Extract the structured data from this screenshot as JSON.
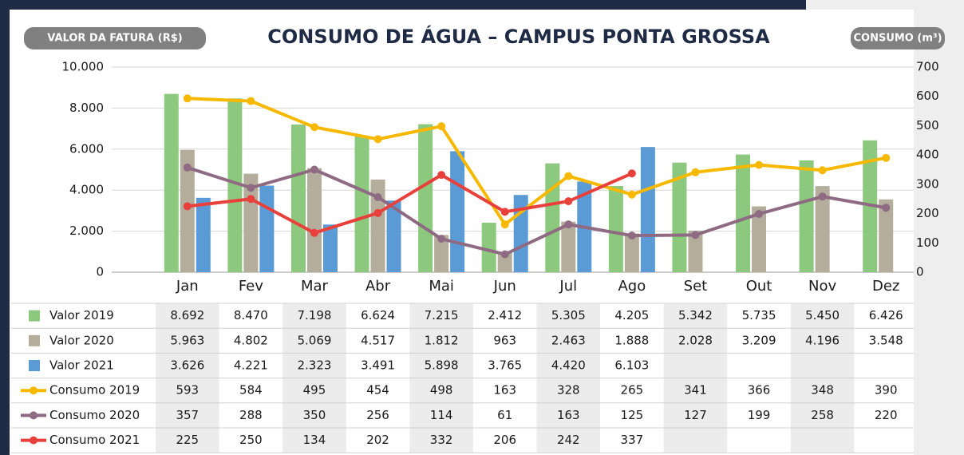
{
  "chart_data": {
    "type": "bar",
    "title": "CONSUMO DE ÁGUA – CAMPUS PONTA GROSSA",
    "y_label": "VALOR DA FATURA (R$)",
    "y2_label": "CONSUMO (m³)",
    "categories": [
      "Jan",
      "Fev",
      "Mar",
      "Abr",
      "Mai",
      "Jun",
      "Jul",
      "Ago",
      "Set",
      "Out",
      "Nov",
      "Dez"
    ],
    "ylim": [
      0,
      10000
    ],
    "yticks": [
      0,
      {
        "value": 2000,
        "label": "2.000"
      },
      {
        "value": 4000,
        "label": "4.000"
      },
      {
        "value": 6000,
        "label": "6.000"
      },
      {
        "value": 8000,
        "label": "8.000"
      },
      {
        "value": 10000,
        "label": "10.000"
      }
    ],
    "y2lim": [
      0,
      700
    ],
    "y2ticks": [
      0,
      100,
      200,
      300,
      400,
      500,
      600,
      700
    ],
    "grid": true,
    "series": [
      {
        "name": "Valor 2019",
        "type": "bar",
        "color": "#8cc97e",
        "values": [
          8692,
          8470,
          7198,
          6624,
          7215,
          2412,
          5305,
          4205,
          5342,
          5735,
          5450,
          6426
        ],
        "value_labels": [
          "8.692",
          "8.470",
          "7.198",
          "6.624",
          "7.215",
          "2.412",
          "5.305",
          "4.205",
          "5.342",
          "5.735",
          "5.450",
          "6.426"
        ]
      },
      {
        "name": "Valor 2020",
        "type": "bar",
        "color": "#b5ad9c",
        "values": [
          5963,
          4802,
          5069,
          4517,
          1812,
          963,
          2463,
          1888,
          2028,
          3209,
          4196,
          3548
        ],
        "value_labels": [
          "5.963",
          "4.802",
          "5.069",
          "4.517",
          "1.812",
          "963",
          "2.463",
          "1.888",
          "2.028",
          "3.209",
          "4.196",
          "3.548"
        ]
      },
      {
        "name": "Valor 2021",
        "type": "bar",
        "color": "#5b9bd5",
        "values": [
          3626,
          4221,
          2323,
          3491,
          5898,
          3765,
          4420,
          6103,
          null,
          null,
          null,
          null
        ],
        "value_labels": [
          "3.626",
          "4.221",
          "2.323",
          "3.491",
          "5.898",
          "3.765",
          "4.420",
          "6.103",
          null,
          null,
          null,
          null
        ]
      },
      {
        "name": "Consumo 2019",
        "type": "line",
        "axis": "y2",
        "color": "#f6b900",
        "values": [
          593,
          584,
          495,
          454,
          498,
          163,
          328,
          265,
          341,
          366,
          348,
          390
        ]
      },
      {
        "name": "Consumo 2020",
        "type": "line",
        "axis": "y2",
        "color": "#8e6a83",
        "values": [
          357,
          288,
          350,
          256,
          114,
          61,
          163,
          125,
          127,
          199,
          258,
          220
        ]
      },
      {
        "name": "Consumo 2021",
        "type": "line",
        "axis": "y2",
        "color": "#e8413c",
        "values": [
          225,
          250,
          134,
          202,
          332,
          206,
          242,
          337,
          null,
          null,
          null,
          null
        ]
      }
    ]
  }
}
